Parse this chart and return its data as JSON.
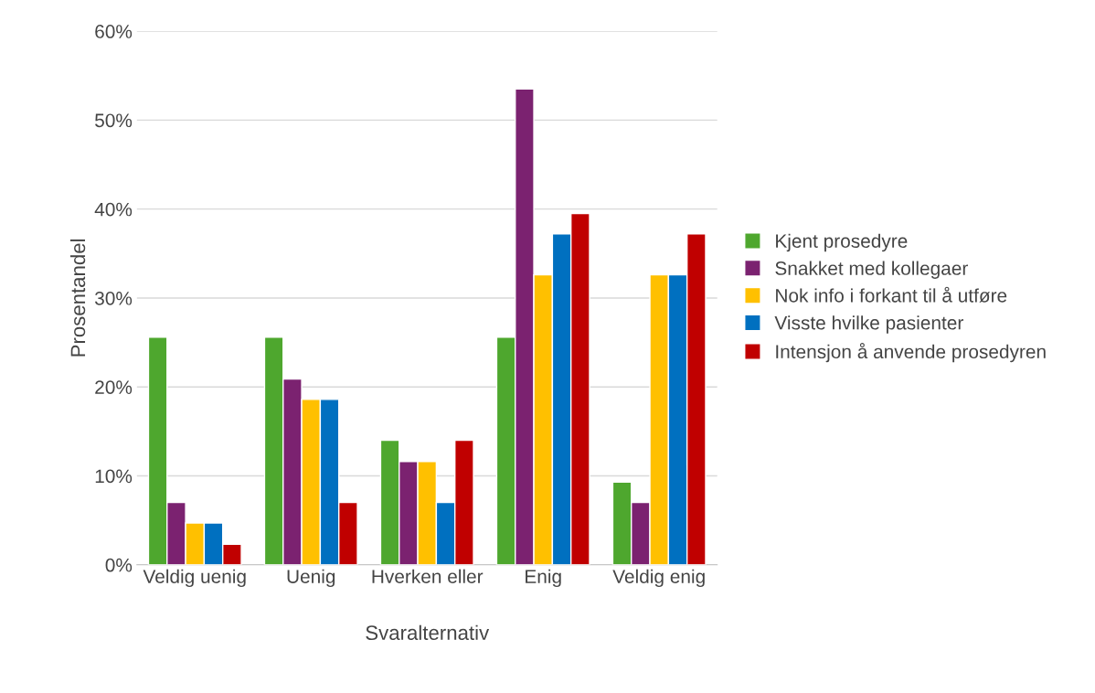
{
  "chart_data": {
    "type": "bar",
    "xlabel": "Svaralternativ",
    "ylabel": "Prosentandel",
    "categories": [
      "Veldig uenig",
      "Uenig",
      "Hverken eller",
      "Enig",
      "Veldig enig"
    ],
    "series": [
      {
        "name": "Kjent prosedyre",
        "color": "#4ea72e",
        "values": [
          25.6,
          25.6,
          14.0,
          25.6,
          9.3
        ]
      },
      {
        "name": "Snakket med kollegaer",
        "color": "#7b2270",
        "values": [
          7.0,
          20.9,
          11.6,
          53.5,
          7.0
        ]
      },
      {
        "name": "Nok info i forkant til å utføre",
        "color": "#ffc000",
        "values": [
          4.7,
          18.6,
          11.6,
          32.6,
          32.6
        ]
      },
      {
        "name": "Visste hvilke pasienter",
        "color": "#0070c0",
        "values": [
          4.7,
          18.6,
          7.0,
          37.2,
          32.6
        ]
      },
      {
        "name": "Intensjon å anvende prosedyren",
        "color": "#c00000",
        "values": [
          2.3,
          7.0,
          14.0,
          39.5,
          37.2
        ]
      }
    ],
    "ylim": [
      0,
      60
    ],
    "yticks": [
      {
        "value": 0,
        "label": "0%"
      },
      {
        "value": 10,
        "label": "10%"
      },
      {
        "value": 20,
        "label": "20%"
      },
      {
        "value": 30,
        "label": "30%"
      },
      {
        "value": 40,
        "label": "40%"
      },
      {
        "value": 50,
        "label": "50%"
      },
      {
        "value": 60,
        "label": "60%"
      }
    ],
    "grid": "y",
    "legend": "right"
  }
}
